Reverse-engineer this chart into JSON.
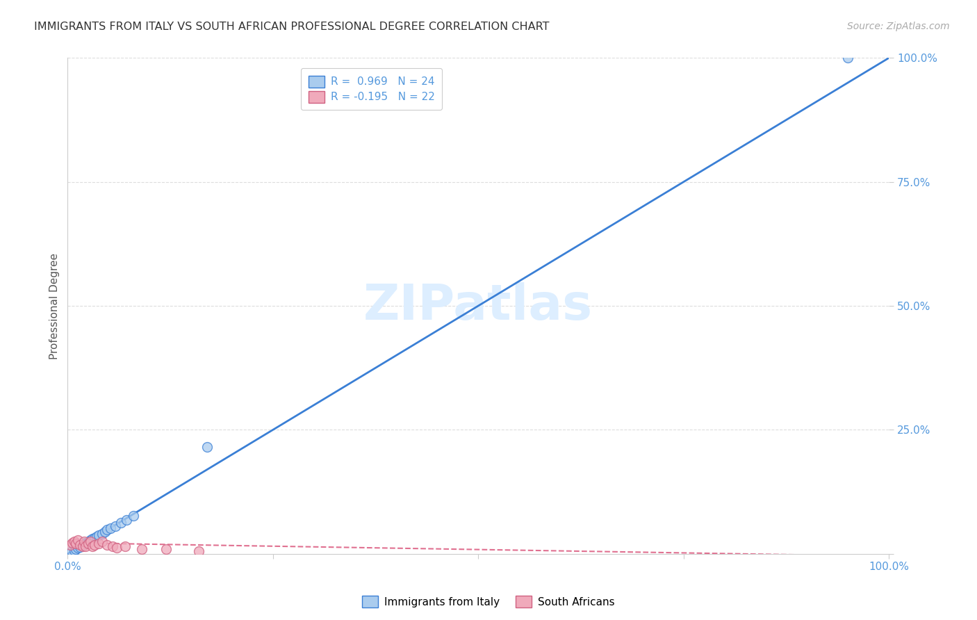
{
  "title": "IMMIGRANTS FROM ITALY VS SOUTH AFRICAN PROFESSIONAL DEGREE CORRELATION CHART",
  "source": "Source: ZipAtlas.com",
  "ylabel": "Professional Degree",
  "watermark": "ZIPatlas",
  "xlim": [
    0,
    1.0
  ],
  "ylim": [
    0,
    1.0
  ],
  "xticks": [
    0.0,
    0.25,
    0.5,
    0.75,
    1.0
  ],
  "yticks": [
    0.0,
    0.25,
    0.5,
    0.75,
    1.0
  ],
  "xticklabels": [
    "0.0%",
    "",
    "",
    "",
    "100.0%"
  ],
  "yticklabels": [
    "",
    "25.0%",
    "50.0%",
    "75.0%",
    "100.0%"
  ],
  "legend_r1": "R =  0.969   N = 24",
  "legend_r2": "R = -0.195   N = 22",
  "blue_scatter_x": [
    0.005,
    0.008,
    0.01,
    0.012,
    0.015,
    0.018,
    0.02,
    0.022,
    0.025,
    0.028,
    0.03,
    0.033,
    0.035,
    0.038,
    0.042,
    0.045,
    0.048,
    0.052,
    0.058,
    0.065,
    0.072,
    0.08,
    0.17,
    0.95
  ],
  "blue_scatter_y": [
    0.005,
    0.007,
    0.01,
    0.012,
    0.014,
    0.018,
    0.02,
    0.022,
    0.024,
    0.028,
    0.03,
    0.032,
    0.034,
    0.038,
    0.04,
    0.044,
    0.048,
    0.052,
    0.056,
    0.062,
    0.068,
    0.076,
    0.215,
    1.0
  ],
  "pink_scatter_x": [
    0.003,
    0.006,
    0.008,
    0.01,
    0.012,
    0.015,
    0.018,
    0.02,
    0.022,
    0.025,
    0.028,
    0.03,
    0.033,
    0.038,
    0.042,
    0.048,
    0.055,
    0.06,
    0.07,
    0.09,
    0.12,
    0.16
  ],
  "pink_scatter_y": [
    0.018,
    0.022,
    0.025,
    0.02,
    0.028,
    0.018,
    0.015,
    0.025,
    0.015,
    0.02,
    0.025,
    0.015,
    0.018,
    0.02,
    0.025,
    0.018,
    0.015,
    0.012,
    0.015,
    0.01,
    0.01,
    0.005
  ],
  "blue_line_x": [
    0.0,
    1.0
  ],
  "blue_line_y": [
    0.0,
    1.0
  ],
  "pink_line_x": [
    0.0,
    1.0
  ],
  "pink_line_y": [
    0.022,
    -0.005
  ],
  "blue_line_color": "#3a7fd5",
  "pink_line_color": "#e07090",
  "blue_scatter_face": "#aaccee",
  "blue_scatter_edge": "#3a7fd5",
  "pink_scatter_face": "#f0aabb",
  "pink_scatter_edge": "#d06080",
  "grid_color": "#dddddd",
  "background_color": "#ffffff",
  "title_color": "#333333",
  "source_color": "#aaaaaa",
  "tick_color": "#5599dd",
  "ylabel_color": "#555555",
  "watermark_color": "#ddeeff",
  "title_fontsize": 11.5,
  "source_fontsize": 10,
  "tick_fontsize": 11,
  "ylabel_fontsize": 11,
  "watermark_fontsize": 52,
  "scatter_size": 100,
  "legend_fontsize": 11
}
